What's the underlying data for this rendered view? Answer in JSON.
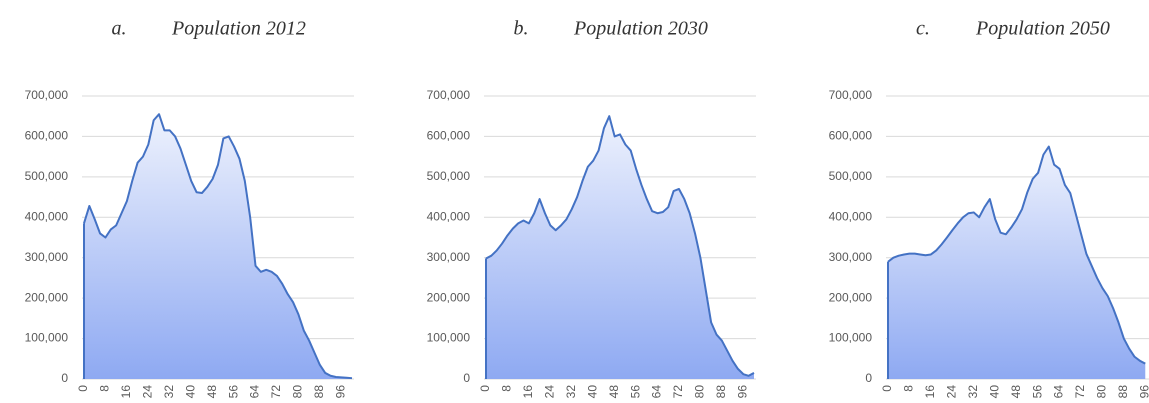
{
  "chart_data": [
    {
      "type": "area",
      "label": "a.",
      "title": "Population 2012",
      "x": [
        0,
        2,
        4,
        6,
        8,
        10,
        12,
        14,
        16,
        18,
        20,
        22,
        24,
        26,
        28,
        30,
        32,
        34,
        36,
        38,
        40,
        42,
        44,
        46,
        48,
        50,
        52,
        54,
        56,
        58,
        60,
        62,
        64,
        66,
        68,
        70,
        72,
        74,
        76,
        78,
        80,
        82,
        84,
        86,
        88,
        90,
        92,
        94,
        96,
        98,
        100
      ],
      "values": [
        385000,
        428000,
        395000,
        360000,
        350000,
        370000,
        380000,
        410000,
        440000,
        490000,
        535000,
        550000,
        580000,
        640000,
        655000,
        615000,
        615000,
        600000,
        570000,
        530000,
        490000,
        462000,
        460000,
        475000,
        495000,
        530000,
        595000,
        600000,
        575000,
        545000,
        490000,
        400000,
        280000,
        265000,
        270000,
        265000,
        255000,
        235000,
        210000,
        190000,
        160000,
        120000,
        95000,
        65000,
        35000,
        15000,
        8000,
        5000,
        4000,
        3000,
        2000
      ],
      "color": "#4472c4",
      "xlim": [
        0,
        100
      ],
      "xticks": [
        0,
        8,
        16,
        24,
        32,
        40,
        48,
        56,
        64,
        72,
        80,
        88,
        96
      ],
      "ylim": [
        0,
        700000
      ],
      "yticks": [
        {
          "value": 0,
          "label": "0"
        },
        {
          "value": 100000,
          "label": "100,000"
        },
        {
          "value": 200000,
          "label": "200,000"
        },
        {
          "value": 300000,
          "label": "300,000"
        },
        {
          "value": 400000,
          "label": "400,000"
        },
        {
          "value": 500000,
          "label": "500,000"
        },
        {
          "value": 600000,
          "label": "600,000"
        },
        {
          "value": 700000,
          "label": "700,000"
        }
      ],
      "grid": true
    },
    {
      "type": "area",
      "label": "b.",
      "title": "Population 2030",
      "x": [
        0,
        2,
        4,
        6,
        8,
        10,
        12,
        14,
        16,
        18,
        20,
        22,
        24,
        26,
        28,
        30,
        32,
        34,
        36,
        38,
        40,
        42,
        44,
        46,
        48,
        50,
        52,
        54,
        56,
        58,
        60,
        62,
        64,
        66,
        68,
        70,
        72,
        74,
        76,
        78,
        80,
        82,
        84,
        86,
        88,
        90,
        92,
        94,
        96,
        98,
        100
      ],
      "values": [
        298000,
        305000,
        318000,
        335000,
        355000,
        372000,
        385000,
        392000,
        385000,
        410000,
        445000,
        410000,
        380000,
        368000,
        380000,
        395000,
        420000,
        450000,
        490000,
        525000,
        540000,
        565000,
        620000,
        650000,
        600000,
        605000,
        580000,
        565000,
        520000,
        480000,
        445000,
        415000,
        410000,
        413000,
        425000,
        465000,
        470000,
        445000,
        410000,
        360000,
        300000,
        220000,
        140000,
        110000,
        95000,
        70000,
        45000,
        25000,
        12000,
        8000,
        15000
      ],
      "color": "#4472c4",
      "xlim": [
        0,
        100
      ],
      "xticks": [
        0,
        8,
        16,
        24,
        32,
        40,
        48,
        56,
        64,
        72,
        80,
        88,
        96
      ],
      "ylim": [
        0,
        700000
      ],
      "yticks": [
        {
          "value": 0,
          "label": "0"
        },
        {
          "value": 100000,
          "label": "100,000"
        },
        {
          "value": 200000,
          "label": "200,000"
        },
        {
          "value": 300000,
          "label": "300,000"
        },
        {
          "value": 400000,
          "label": "400,000"
        },
        {
          "value": 500000,
          "label": "500,000"
        },
        {
          "value": 600000,
          "label": "600,000"
        },
        {
          "value": 700000,
          "label": "700,000"
        }
      ],
      "grid": true
    },
    {
      "type": "area",
      "label": "c.",
      "title": "Population 2050",
      "x": [
        0,
        2,
        4,
        6,
        8,
        10,
        12,
        14,
        16,
        18,
        20,
        22,
        24,
        26,
        28,
        30,
        32,
        34,
        36,
        38,
        40,
        42,
        44,
        46,
        48,
        50,
        52,
        54,
        56,
        58,
        60,
        62,
        64,
        66,
        68,
        70,
        72,
        74,
        76,
        78,
        80,
        82,
        84,
        86,
        88,
        90,
        92,
        94,
        96
      ],
      "values": [
        290000,
        300000,
        305000,
        308000,
        310000,
        310000,
        308000,
        306000,
        308000,
        318000,
        333000,
        350000,
        368000,
        385000,
        400000,
        410000,
        412000,
        400000,
        425000,
        445000,
        395000,
        362000,
        358000,
        375000,
        395000,
        420000,
        462000,
        495000,
        510000,
        555000,
        575000,
        530000,
        520000,
        480000,
        460000,
        410000,
        360000,
        310000,
        280000,
        250000,
        225000,
        205000,
        175000,
        140000,
        100000,
        75000,
        55000,
        45000,
        38000
      ],
      "color": "#4472c4",
      "xlim": [
        0,
        100
      ],
      "xticks": [
        0,
        8,
        16,
        24,
        32,
        40,
        48,
        56,
        64,
        72,
        80,
        88,
        96
      ],
      "ylim": [
        0,
        700000
      ],
      "yticks": [
        {
          "value": 0,
          "label": "0"
        },
        {
          "value": 100000,
          "label": "100,000"
        },
        {
          "value": 200000,
          "label": "200,000"
        },
        {
          "value": 300000,
          "label": "300,000"
        },
        {
          "value": 400000,
          "label": "400,000"
        },
        {
          "value": 500000,
          "label": "500,000"
        },
        {
          "value": 600000,
          "label": "600,000"
        },
        {
          "value": 700000,
          "label": "700,000"
        }
      ],
      "grid": true
    }
  ]
}
